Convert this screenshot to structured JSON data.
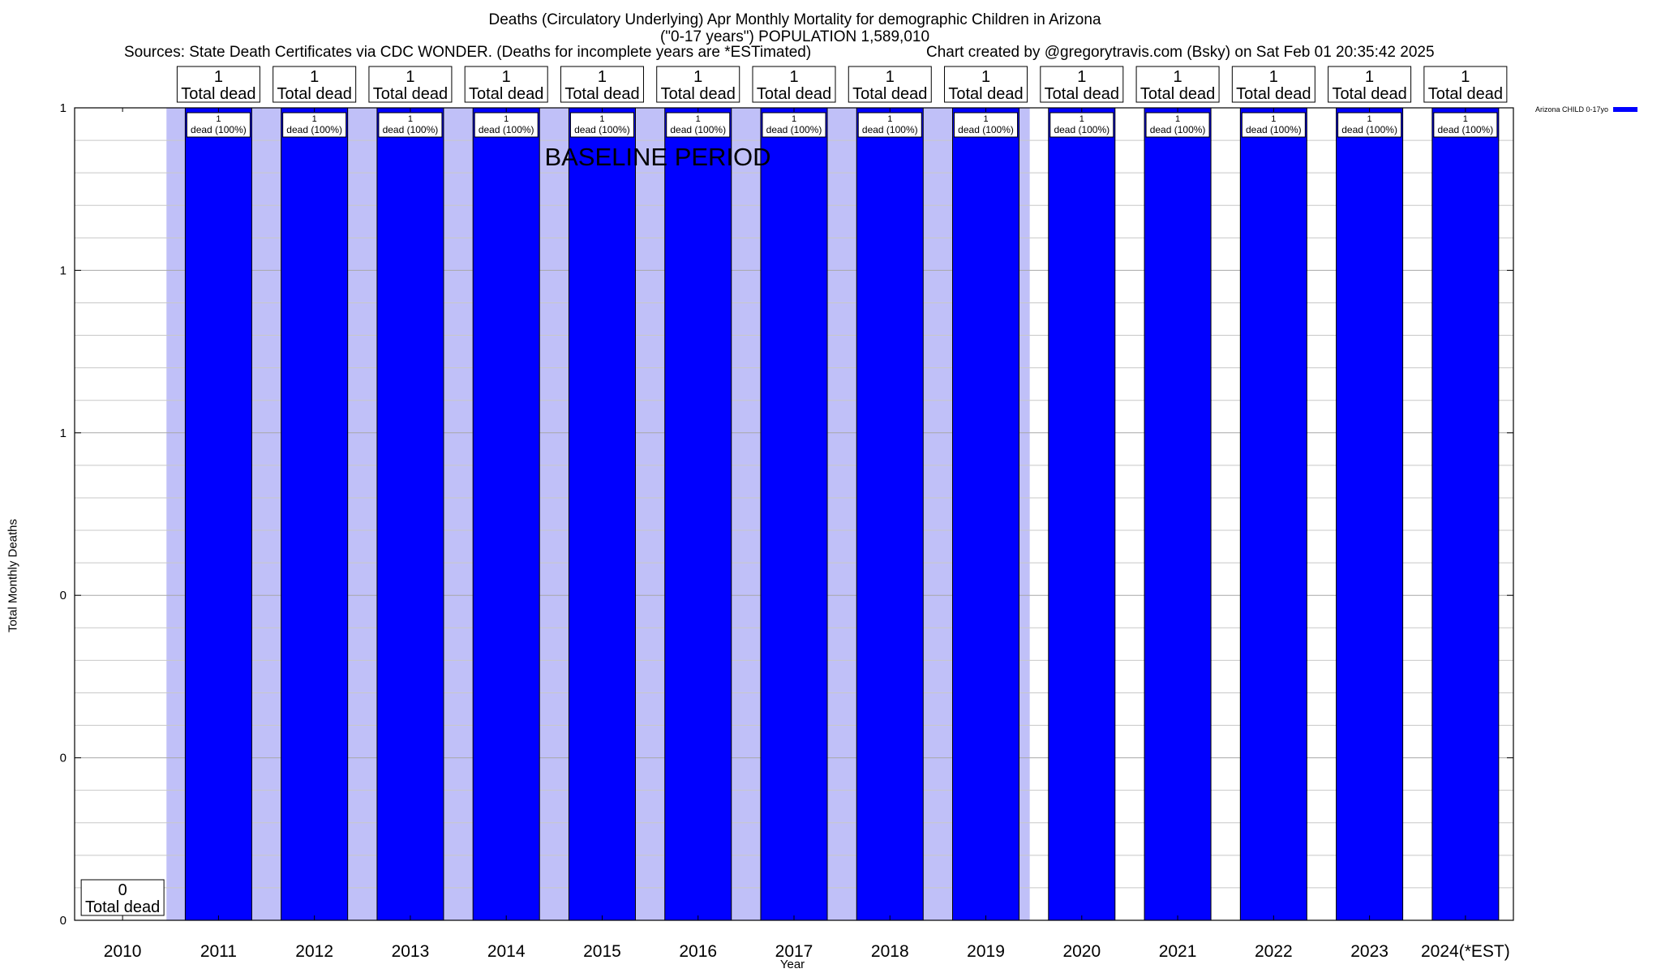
{
  "header": {
    "title_line1": "Deaths (Circulatory Underlying) Apr Monthly Mortality for demographic Children in Arizona",
    "title_line2": "(\"0-17 years\") POPULATION 1,589,010",
    "sources": "Sources: State Death Certificates via CDC WONDER. (Deaths for incomplete years are *ESTimated)",
    "credit": "Chart created by @gregorytravis.com (Bsky) on Sat Feb 01 20:35:42 2025"
  },
  "legend": {
    "label": "Arizona CHILD 0-17yo",
    "color": "#0000ff"
  },
  "chart_data": {
    "type": "bar",
    "categories": [
      "2010",
      "2011",
      "2012",
      "2013",
      "2014",
      "2015",
      "2016",
      "2017",
      "2018",
      "2019",
      "2020",
      "2021",
      "2022",
      "2023",
      "2024(*EST)"
    ],
    "series": [
      {
        "name": "Arizona CHILD 0-17yo",
        "values": [
          0,
          1,
          1,
          1,
          1,
          1,
          1,
          1,
          1,
          1,
          1,
          1,
          1,
          1,
          1
        ],
        "color": "#0000ff"
      }
    ],
    "top_labels": [
      {
        "value": "0",
        "text": "Total dead"
      },
      {
        "value": "1",
        "text": "Total dead"
      },
      {
        "value": "1",
        "text": "Total dead"
      },
      {
        "value": "1",
        "text": "Total dead"
      },
      {
        "value": "1",
        "text": "Total dead"
      },
      {
        "value": "1",
        "text": "Total dead"
      },
      {
        "value": "1",
        "text": "Total dead"
      },
      {
        "value": "1",
        "text": "Total dead"
      },
      {
        "value": "1",
        "text": "Total dead"
      },
      {
        "value": "1",
        "text": "Total dead"
      },
      {
        "value": "1",
        "text": "Total dead"
      },
      {
        "value": "1",
        "text": "Total dead"
      },
      {
        "value": "1",
        "text": "Total dead"
      },
      {
        "value": "1",
        "text": "Total dead"
      },
      {
        "value": "1",
        "text": "Total dead"
      }
    ],
    "inner_labels": [
      null,
      {
        "value": "1",
        "text": "dead (100%)"
      },
      {
        "value": "1",
        "text": "dead (100%)"
      },
      {
        "value": "1",
        "text": "dead (100%)"
      },
      {
        "value": "1",
        "text": "dead (100%)"
      },
      {
        "value": "1",
        "text": "dead (100%)"
      },
      {
        "value": "1",
        "text": "dead (100%)"
      },
      {
        "value": "1",
        "text": "dead (100%)"
      },
      {
        "value": "1",
        "text": "dead (100%)"
      },
      {
        "value": "1",
        "text": "dead (100%)"
      },
      {
        "value": "1",
        "text": "dead (100%)"
      },
      {
        "value": "1",
        "text": "dead (100%)"
      },
      {
        "value": "1",
        "text": "dead (100%)"
      },
      {
        "value": "1",
        "text": "dead (100%)"
      },
      {
        "value": "1",
        "text": "dead (100%)"
      }
    ],
    "baseline_period": {
      "label": "BASELINE PERIOD",
      "from": "2011",
      "to": "2019",
      "color": "#c0c0f8"
    },
    "ylim": [
      0,
      1
    ],
    "ytick_values": [
      0,
      0.2,
      0.4,
      0.6,
      0.8,
      1.0
    ],
    "ytick_labels": [
      "0",
      "0",
      "0",
      "1",
      "1",
      "1"
    ],
    "minor_grid_per_major": 5,
    "xlabel": "Year",
    "ylabel": "Total Monthly Deaths",
    "grid": true
  }
}
